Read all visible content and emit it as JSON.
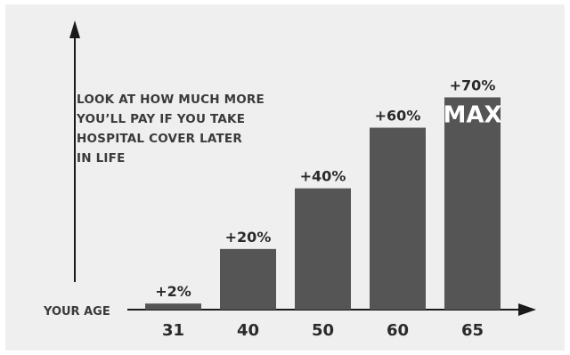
{
  "chart_data": {
    "type": "bar",
    "categories": [
      "31",
      "40",
      "50",
      "60",
      "65"
    ],
    "values": [
      2,
      20,
      40,
      60,
      70
    ],
    "data_labels": [
      "+2%",
      "+20%",
      "+40%",
      "+60%",
      "+70%"
    ],
    "bar_annotations": [
      "",
      "",
      "",
      "",
      "MAX"
    ],
    "xlabel": "YOUR AGE",
    "ylabel": "",
    "ylim": [
      0,
      76
    ],
    "annotation_lines": [
      "LOOK AT HOW MUCH MORE",
      "YOU’LL PAY IF YOU TAKE",
      "HOSPITAL COVER LATER",
      "IN LIFE"
    ],
    "bar_color": "#555555",
    "grid": false,
    "legend": "none"
  }
}
